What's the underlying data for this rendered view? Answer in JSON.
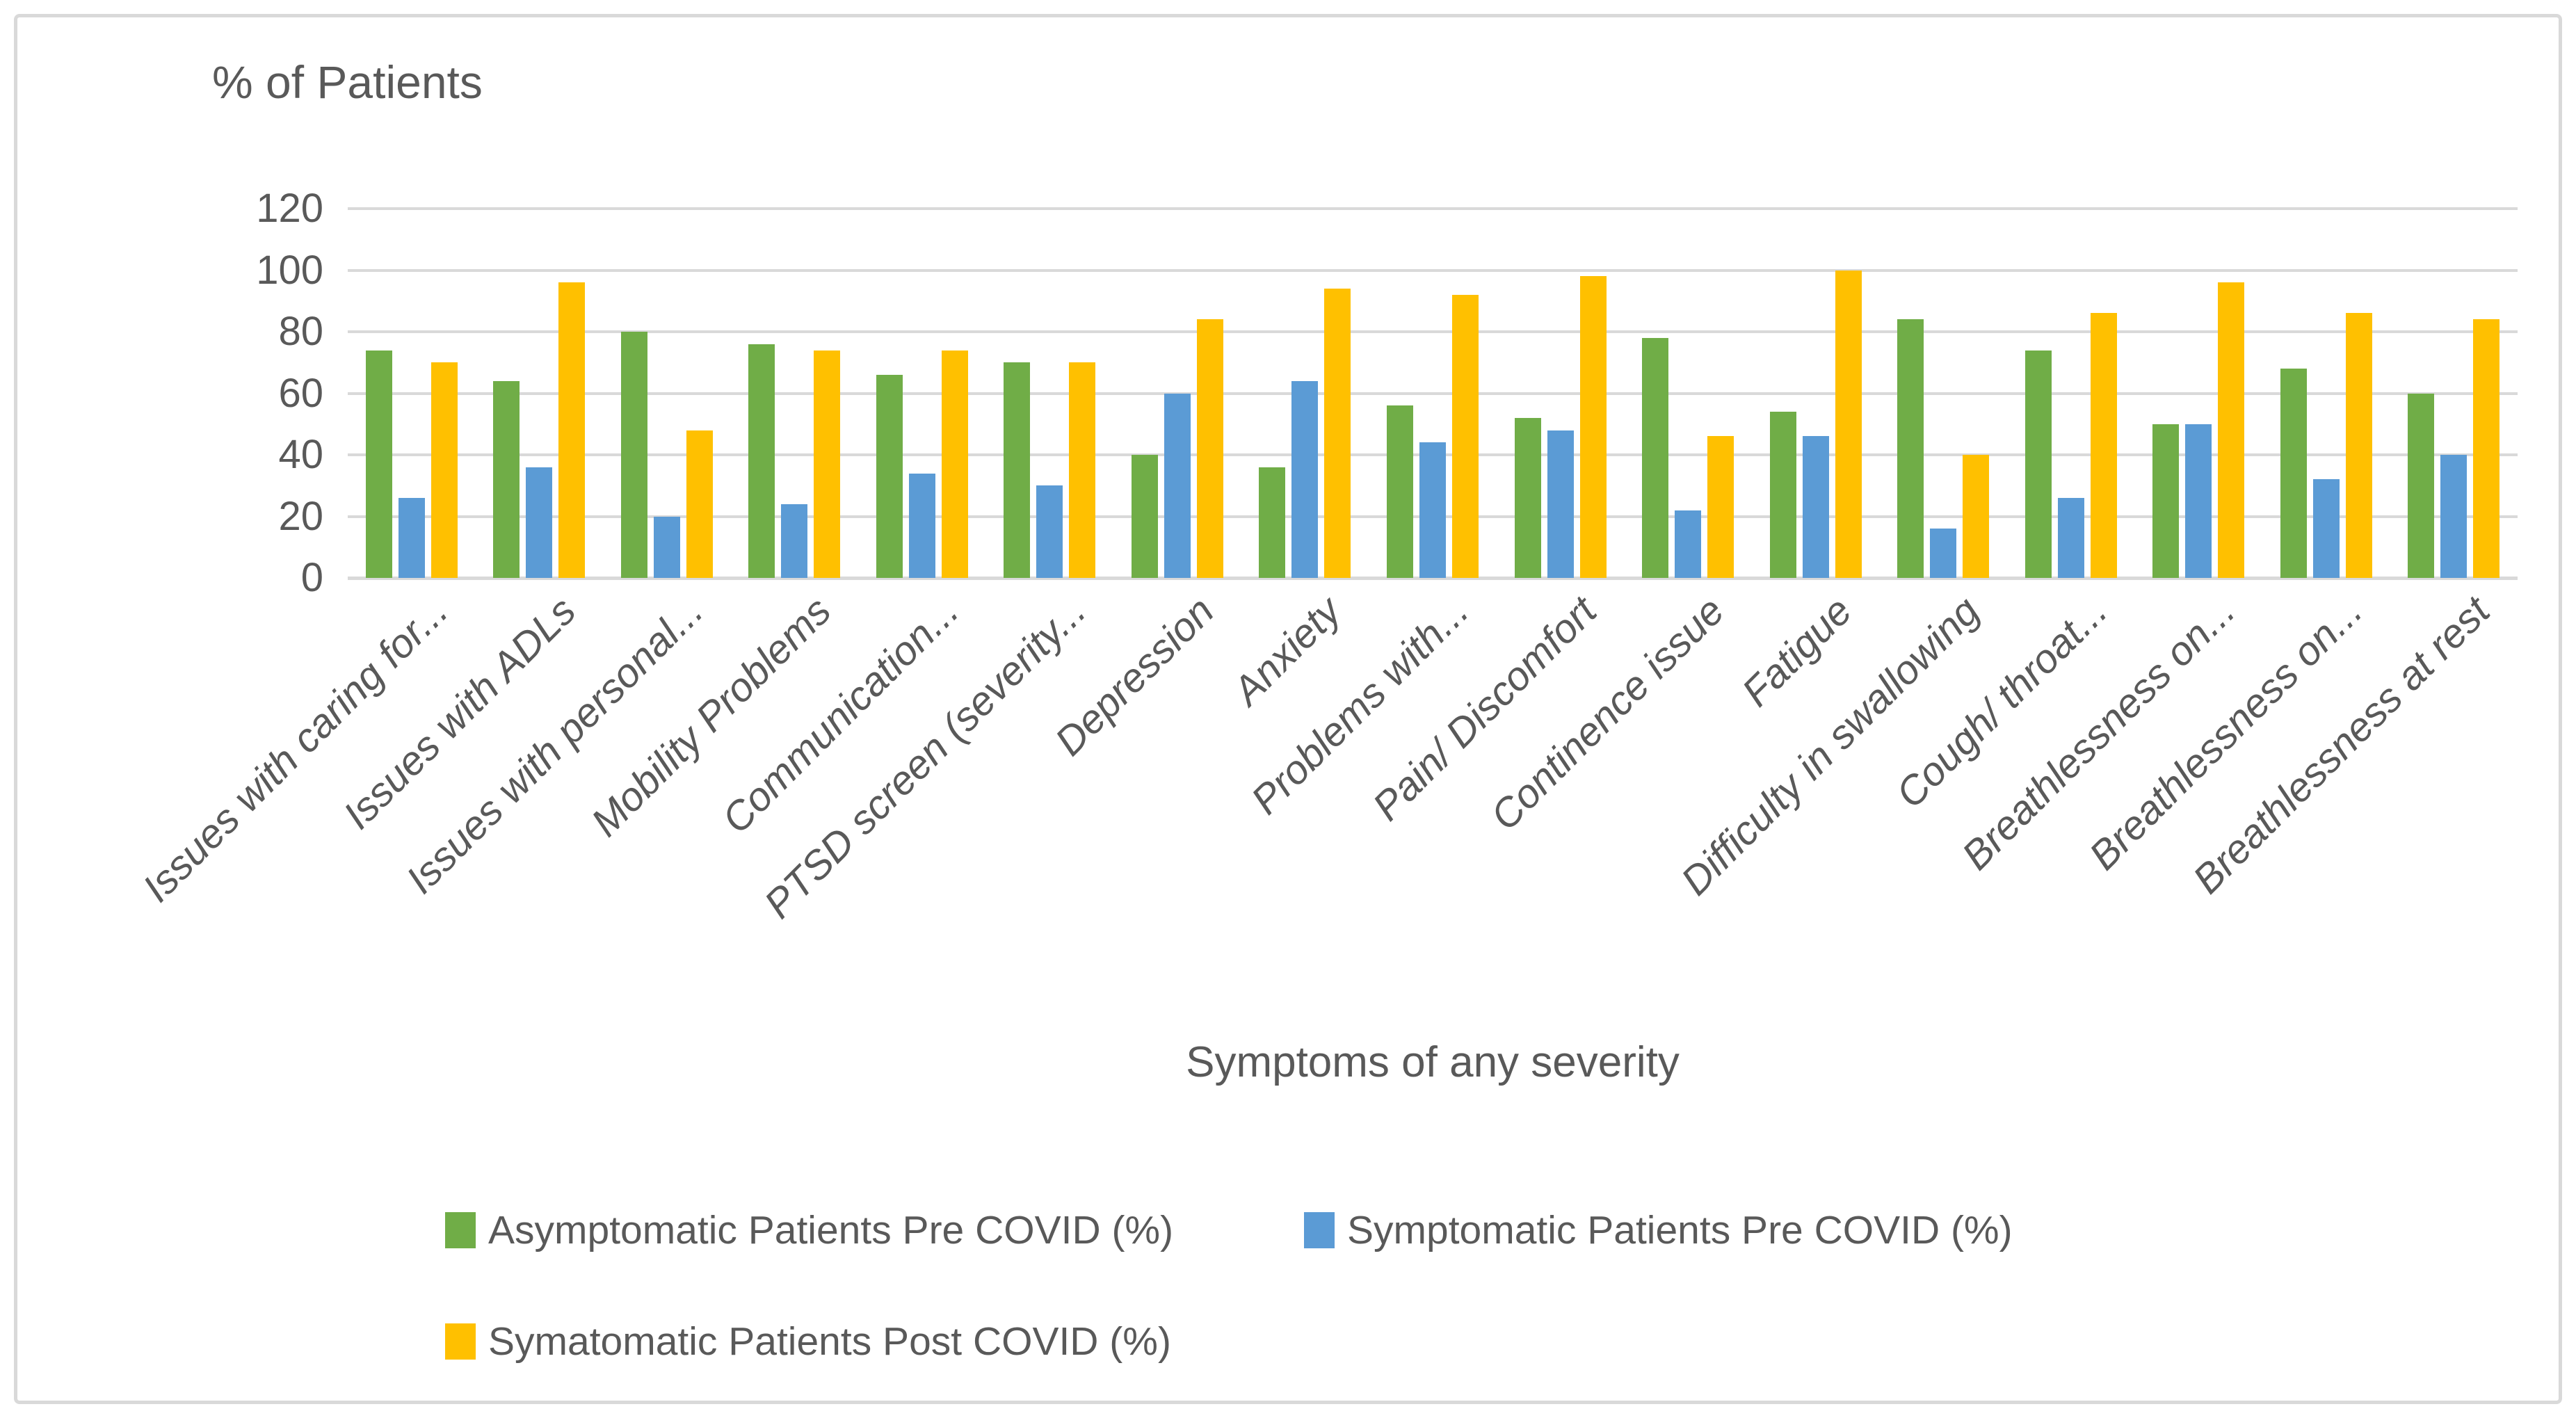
{
  "figure": {
    "background_color": "#FFFFFF",
    "border_color": "#D9D9D9",
    "text_color": "#595959",
    "grid_color": "#D9D9D9"
  },
  "chart_data": {
    "type": "bar",
    "title": "% of Patients",
    "xlabel": "Symptoms of any severity",
    "ylabel": "",
    "ylim": [
      0,
      120
    ],
    "ytick_step": 20,
    "yticks": [
      0,
      20,
      40,
      60,
      80,
      100,
      120
    ],
    "grid": true,
    "legend_position": "bottom",
    "categories": [
      "Issues with caring for...",
      "Issues with ADLs",
      "Issues with personal...",
      "Mobility Problems",
      "Communication...",
      "PTSD screen (severity...",
      "Depression",
      "Anxiety",
      "Problems with...",
      "Pain/ Discomfort",
      "Continence issue",
      "Fatigue",
      "Difficulty in swallowing",
      "Cough/ throat...",
      "Breathlessness on...",
      "Breathlessness on...",
      "Breathlessness at rest"
    ],
    "series": [
      {
        "name": "Asymptomatic Patients Pre COVID (%)",
        "color": "#70AD47",
        "values": [
          74,
          64,
          80,
          76,
          66,
          70,
          40,
          36,
          56,
          52,
          78,
          54,
          84,
          74,
          50,
          68,
          60
        ]
      },
      {
        "name": "Symptomatic Patients Pre COVID (%)",
        "color": "#5B9BD5",
        "values": [
          26,
          36,
          20,
          24,
          34,
          30,
          60,
          64,
          44,
          48,
          22,
          46,
          16,
          26,
          50,
          32,
          40
        ]
      },
      {
        "name": "Symatomatic Patients Post COVID (%)",
        "color": "#FFC000",
        "values": [
          70,
          96,
          48,
          74,
          74,
          70,
          84,
          94,
          92,
          98,
          46,
          100,
          40,
          86,
          96,
          86,
          84
        ]
      }
    ]
  }
}
